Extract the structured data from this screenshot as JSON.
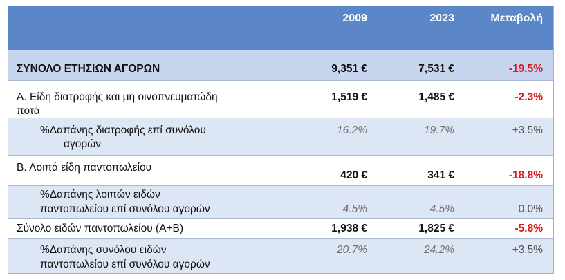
{
  "table": {
    "header": {
      "col_2009": "2009",
      "col_2023": "2023",
      "col_change": "Μεταβολή"
    },
    "rows": [
      {
        "label": "ΣΥΝΟΛΟ ΕΤΗΣΙΩΝ ΑΓΟΡΩΝ",
        "v2009": "9,351 €",
        "v2023": "7,531 €",
        "change": "-19.5%"
      },
      {
        "label_line1": "Α. Είδη διατροφής και μη οινοπνευματώδη",
        "label_line2": "ποτά",
        "v2009": "1,519 €",
        "v2023": "1,485 €",
        "change": "-2.3%"
      },
      {
        "label_line1": "%Δαπάνης διατροφής επί συνόλου",
        "label_line2": "αγορών",
        "v2009": "16.2%",
        "v2023": "19.7%",
        "change": "+3.5%"
      },
      {
        "label": "Β. Λοιπά είδη παντοπωλείου",
        "v2009": "420 €",
        "v2023": "341 €",
        "change": "-18.8%"
      },
      {
        "label_line1": "%Δαπάνης λοιπών ειδών",
        "label_line2": "παντοπωλείου επί συνόλου αγορών",
        "v2009": "4.5%",
        "v2023": "4.5%",
        "change": "0.0%"
      },
      {
        "label": "Σύνολο ειδών παντοπωλείου (Α+Β)",
        "v2009": "1,938 €",
        "v2023": "1,825 €",
        "change": "-5.8%"
      },
      {
        "label_line1": "%Δαπάνης συνόλου ειδών",
        "label_line2": "παντοπωλείου επί συνόλου αγορών",
        "v2009": "20.7%",
        "v2023": "24.2%",
        "change": "+3.5%"
      }
    ]
  },
  "colors": {
    "header_bg": "#5b86c8",
    "total_bg": "#c7d5ee",
    "share_bg": "#dde6f5",
    "negative": "#e3161b"
  }
}
